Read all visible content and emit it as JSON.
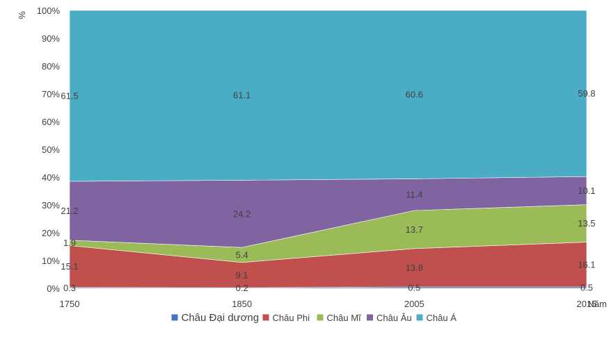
{
  "chart_data": {
    "type": "area",
    "stacked": "percent",
    "ylabel": "%",
    "xlabel": "Năm",
    "ylim": [
      0,
      100
    ],
    "yticks": [
      "0%",
      "10%",
      "20%",
      "30%",
      "40%",
      "50%",
      "60%",
      "70%",
      "80%",
      "90%",
      "100%"
    ],
    "categories": [
      "1750",
      "1850",
      "2005",
      "2015"
    ],
    "series": [
      {
        "name": "Châu Đại dương",
        "values": [
          0.3,
          0.2,
          0.5,
          0.5
        ],
        "color": "#4472c4"
      },
      {
        "name": "Châu Phi",
        "values": [
          15.1,
          9.1,
          13.8,
          16.1
        ],
        "color": "#c0504d"
      },
      {
        "name": "Châu Mĩ",
        "values": [
          1.9,
          5.4,
          13.7,
          13.5
        ],
        "color": "#9bbb59"
      },
      {
        "name": "Châu Âu",
        "values": [
          21.2,
          24.2,
          11.4,
          10.1
        ],
        "color": "#8064a2"
      },
      {
        "name": "Châu Á",
        "values": [
          61.5,
          61.1,
          60.6,
          59.8
        ],
        "color": "#4bacc6"
      }
    ],
    "legend": "bottom",
    "grid": false
  }
}
